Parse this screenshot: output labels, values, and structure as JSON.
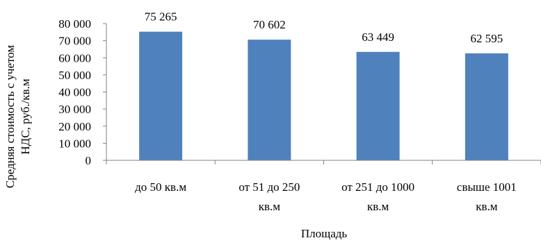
{
  "chart_data": {
    "type": "bar",
    "categories": [
      [
        "до 50 кв.м"
      ],
      [
        "от 51 до 250",
        "кв.м"
      ],
      [
        "от 251 до 1000",
        "кв.м"
      ],
      [
        "свыше 1001",
        "кв.м"
      ]
    ],
    "values": [
      75265,
      70602,
      63449,
      62595
    ],
    "value_labels": [
      "75 265",
      "70 602",
      "63 449",
      "62 595"
    ],
    "yticks": [
      0,
      10000,
      20000,
      30000,
      40000,
      50000,
      60000,
      70000,
      80000
    ],
    "ytick_labels": [
      "0",
      "10 000",
      "20 000",
      "30 000",
      "40 000",
      "50 000",
      "60 000",
      "70 000",
      "80 000"
    ],
    "ylim": [
      0,
      80000
    ],
    "xlabel": "Площадь",
    "ylabel": [
      "Средняя стоимость с учетом",
      "НДС, руб./кв.м"
    ],
    "bar_color": "#4f81bd",
    "grid": false,
    "legend": "none"
  }
}
